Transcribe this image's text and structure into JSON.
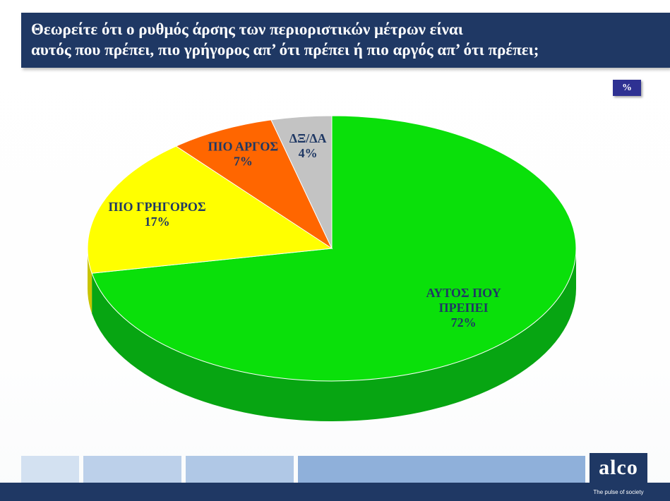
{
  "header": {
    "title_line1": "Θεωρείτε ότι ο ρυθμός άρσης των περιοριστικών μέτρων είναι",
    "title_line2": "αυτός που πρέπει, πιο γρήγορος απ’ ότι πρέπει ή πιο αργός απ’ ότι πρέπει;",
    "unit_badge": "%"
  },
  "chart_data": {
    "type": "pie",
    "style": "3d",
    "title": "Θεωρείτε ότι ο ρυθμός άρσης των περιοριστικών μέτρων είναι αυτός που πρέπει, πιο γρήγορος απ’ ότι πρέπει ή πιο αργός απ’ ότι πρέπει;",
    "unit": "%",
    "start_angle_deg": 0,
    "direction": "clockwise",
    "legend": "none",
    "slices": [
      {
        "label": "ΑΥΤΟΣ ΠΟΥ ΠΡΕΠΕΙ",
        "value": 72,
        "color": "#0ae00a",
        "side_color": "#07a512",
        "label_lines": [
          "ΑΥΤΟΣ ΠΟΥ",
          "ΠΡΕΠΕΙ",
          "72%"
        ]
      },
      {
        "label": "ΠΙΟ ΓΡΗΓΟΡΟΣ",
        "value": 17,
        "color": "#ffff00",
        "side_color": "#c9c400",
        "label_lines": [
          "ΠΙΟ ΓΡΗΓΟΡΟΣ",
          "17%"
        ]
      },
      {
        "label": "ΠΙΟ ΑΡΓΟΣ",
        "value": 7,
        "color": "#ff6600",
        "side_color": "#c24e00",
        "label_lines": [
          "ΠΙΟ ΑΡΓΟΣ",
          "7%"
        ]
      },
      {
        "label": "ΔΞ/ΔΑ",
        "value": 4,
        "color": "#c3c3c3",
        "side_color": "#8f8f8f",
        "label_lines": [
          "ΔΞ/ΔΑ",
          "4%"
        ]
      }
    ]
  },
  "footer": {
    "logo_text": "alco",
    "tagline": "The pulse of society"
  },
  "theme": {
    "navy": "#1f3864",
    "badge_navy": "#2e3192",
    "label_color": "#1f3864"
  }
}
